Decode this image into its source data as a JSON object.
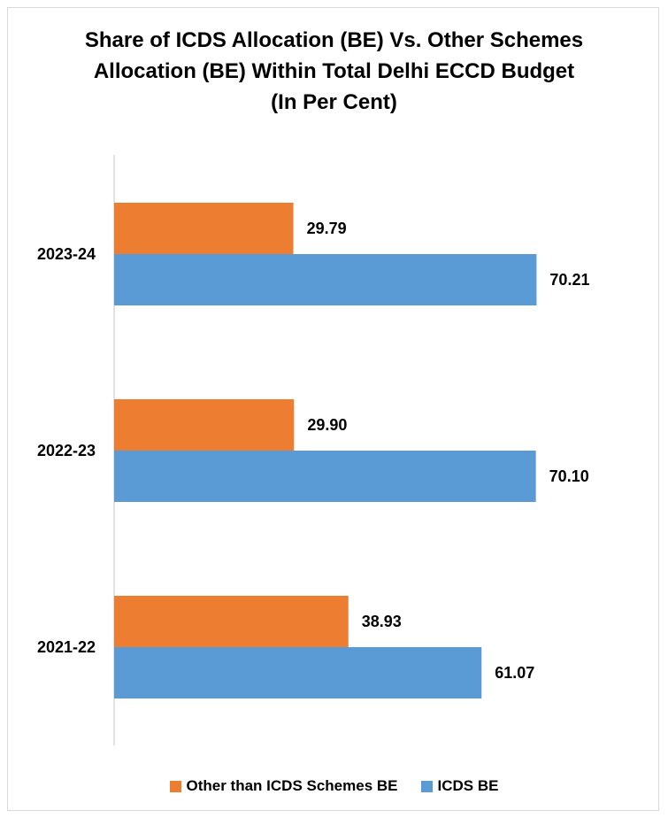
{
  "chart_data": {
    "type": "bar",
    "orientation": "horizontal",
    "title_lines": [
      "Share of ICDS Allocation (BE) Vs. Other Schemes",
      "Allocation (BE) Within Total Delhi ECCD Budget",
      "(In Per Cent)"
    ],
    "categories": [
      "2023-24",
      "2022-23",
      "2021-22"
    ],
    "series": [
      {
        "name": "Other than ICDS Schemes BE",
        "color": "#ED7D31",
        "values": [
          29.79,
          29.9,
          38.93
        ],
        "labels": [
          "29.79",
          "29.90",
          "38.93"
        ]
      },
      {
        "name": "ICDS BE",
        "color": "#5B9BD5",
        "values": [
          70.21,
          70.1,
          61.07
        ],
        "labels": [
          "70.21",
          "70.10",
          "61.07"
        ]
      }
    ],
    "xlim": [
      0,
      80
    ],
    "grid": false,
    "legend_position": "bottom"
  }
}
